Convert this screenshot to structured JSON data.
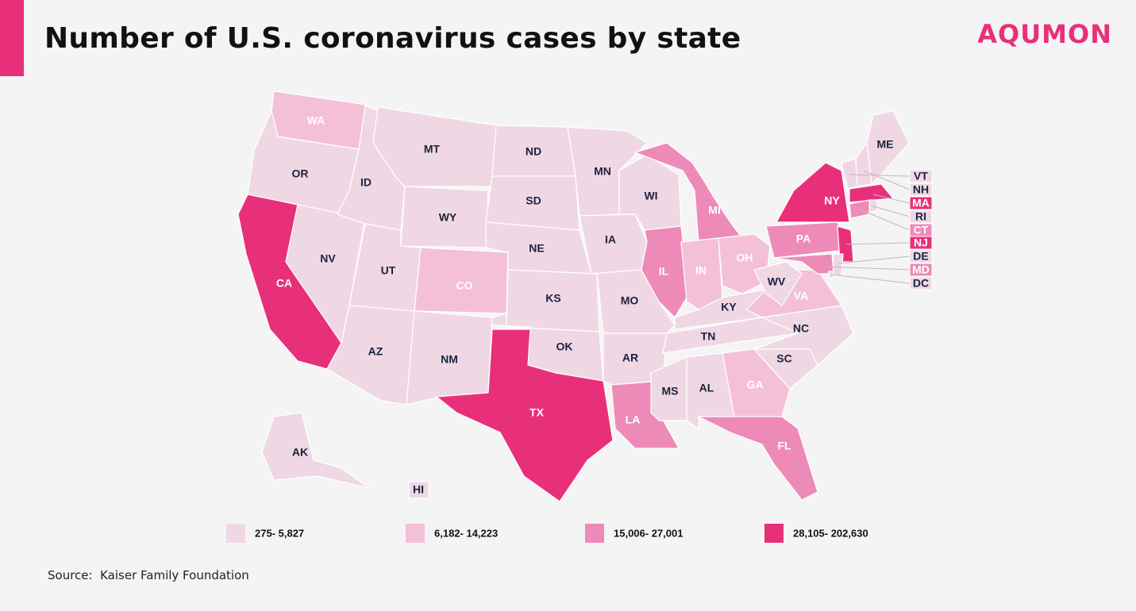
{
  "header": {
    "title": "Number of U.S. coronavirus cases by state",
    "brand": "AQUMON"
  },
  "map": {
    "states": [
      {
        "label": "WA",
        "color": "#f4c0d8"
      },
      {
        "label": "OR",
        "color": "#efd8e3"
      },
      {
        "label": "CA",
        "color": "#e8307a"
      },
      {
        "label": "NV",
        "color": "#efd8e3"
      },
      {
        "label": "ID",
        "color": "#efd8e3"
      },
      {
        "label": "MT",
        "color": "#efd8e3"
      },
      {
        "label": "WY",
        "color": "#efd8e3"
      },
      {
        "label": "UT",
        "color": "#efd8e3"
      },
      {
        "label": "AZ",
        "color": "#efd8e3"
      },
      {
        "label": "CO",
        "color": "#f4c0d8"
      },
      {
        "label": "NM",
        "color": "#efd8e3"
      },
      {
        "label": "ND",
        "color": "#efd8e3"
      },
      {
        "label": "SD",
        "color": "#efd8e3"
      },
      {
        "label": "NE",
        "color": "#efd8e3"
      },
      {
        "label": "KS",
        "color": "#efd8e3"
      },
      {
        "label": "OK",
        "color": "#efd8e3"
      },
      {
        "label": "TX",
        "color": "#e8307a"
      },
      {
        "label": "MN",
        "color": "#efd8e3"
      },
      {
        "label": "IA",
        "color": "#efd8e3"
      },
      {
        "label": "MO",
        "color": "#efd8e3"
      },
      {
        "label": "AR",
        "color": "#efd8e3"
      },
      {
        "label": "LA",
        "color": "#ee8ab8"
      },
      {
        "label": "WI",
        "color": "#efd8e3"
      },
      {
        "label": "IL",
        "color": "#ee8ab8"
      },
      {
        "label": "MI",
        "color": "#ee8ab8"
      },
      {
        "label": "IN",
        "color": "#f4c0d8"
      },
      {
        "label": "OH",
        "color": "#f4c0d8"
      },
      {
        "label": "KY",
        "color": "#efd8e3"
      },
      {
        "label": "TN",
        "color": "#efd8e3"
      },
      {
        "label": "MS",
        "color": "#efd8e3"
      },
      {
        "label": "AL",
        "color": "#efd8e3"
      },
      {
        "label": "GA",
        "color": "#f4c0d8"
      },
      {
        "label": "FL",
        "color": "#ee8ab8"
      },
      {
        "label": "SC",
        "color": "#efd8e3"
      },
      {
        "label": "NC",
        "color": "#efd8e3"
      },
      {
        "label": "VA",
        "color": "#f4c0d8"
      },
      {
        "label": "WV",
        "color": "#efd8e3"
      },
      {
        "label": "PA",
        "color": "#ee8ab8"
      },
      {
        "label": "NY",
        "color": "#e8307a"
      },
      {
        "label": "ME",
        "color": "#efd8e3"
      },
      {
        "label": "AK",
        "color": "#efd8e3"
      },
      {
        "label": "HI",
        "color": "#efd8e3"
      },
      {
        "label": "VT",
        "color": "#efd8e3"
      },
      {
        "label": "NH",
        "color": "#efd8e3"
      },
      {
        "label": "MA",
        "color": "#e8307a"
      },
      {
        "label": "RI",
        "color": "#efd8e3"
      },
      {
        "label": "CT",
        "color": "#ee8ab8"
      },
      {
        "label": "NJ",
        "color": "#e8307a"
      },
      {
        "label": "DE",
        "color": "#efd8e3"
      },
      {
        "label": "MD",
        "color": "#ee8ab8"
      },
      {
        "label": "DC",
        "color": "#efd8e3"
      }
    ]
  },
  "legend": [
    {
      "label": "275- 5,827",
      "color": "#efd8e3"
    },
    {
      "label": "6,182- 14,223",
      "color": "#f4c0d8"
    },
    {
      "label": "15,006- 27,001",
      "color": "#ee8ab8"
    },
    {
      "label": "28,105- 202,630",
      "color": "#e8307a"
    }
  ],
  "source": "Source:  Kaiser Family Foundation"
}
